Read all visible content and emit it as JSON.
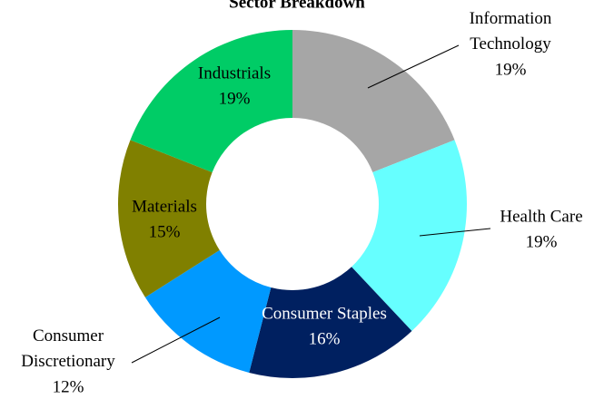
{
  "chart_data": {
    "type": "donut",
    "title": "Sector Breakdown",
    "categories": [
      "Information Technology",
      "Health Care",
      "Consumer Staples",
      "Consumer Discretionary",
      "Materials",
      "Industrials"
    ],
    "values": [
      19,
      19,
      16,
      12,
      15,
      19
    ],
    "value_labels": [
      "19%",
      "19%",
      "16%",
      "12%",
      "15%",
      "19%"
    ],
    "colors": [
      "#a6a6a6",
      "#66ffff",
      "#002060",
      "#0099ff",
      "#808000",
      "#00cc66"
    ]
  }
}
